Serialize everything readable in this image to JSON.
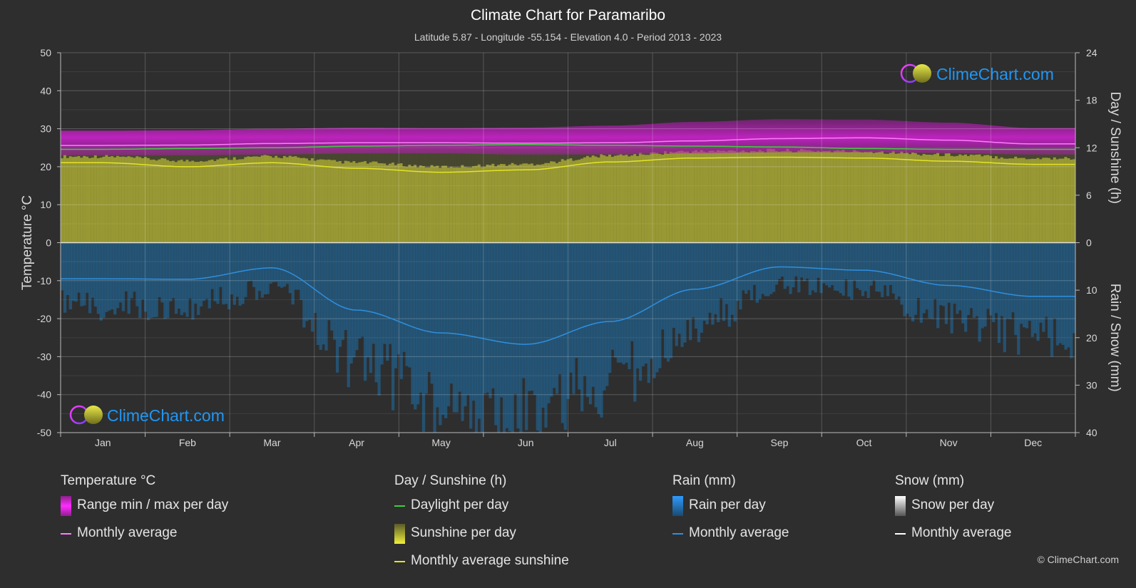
{
  "title": "Climate Chart for Paramaribo",
  "subtitle": "Latitude 5.87 - Longitude -55.154 - Elevation 4.0 - Period 2013 - 2023",
  "watermark_text": "ClimeChart.com",
  "copyright": "© ClimeChart.com",
  "colors": {
    "background": "#2e2e2e",
    "temp_range": "#c21fc2",
    "temp_avg": "#ff7bff",
    "daylight": "#3ecf3e",
    "sunshine": "#a7a735",
    "sunshine_avg": "#e3e329",
    "rain": "#1f6fa8",
    "rain_avg": "#2e8fdf",
    "snow_avg": "#ffffff",
    "brand": "#2196f3"
  },
  "chart_data": {
    "type": "line",
    "title": "Climate Chart for Paramaribo",
    "categories": [
      "Jan",
      "Feb",
      "Mar",
      "Apr",
      "May",
      "Jun",
      "Jul",
      "Aug",
      "Sep",
      "Oct",
      "Nov",
      "Dec"
    ],
    "axes": {
      "left": {
        "label": "Temperature °C",
        "min": -50,
        "max": 50,
        "ticks": [
          "50",
          "40",
          "30",
          "20",
          "10",
          "0",
          "-10",
          "-20",
          "-30",
          "-40",
          "-50"
        ]
      },
      "right_top": {
        "label": "Day / Sunshine (h)",
        "min": 0,
        "max": 24,
        "ticks": [
          "24",
          "18",
          "12",
          "6",
          "0"
        ]
      },
      "right_bottom": {
        "label": "Rain / Snow (mm)",
        "min": 0,
        "max": 40,
        "ticks": [
          "0",
          "10",
          "20",
          "30",
          "40"
        ]
      }
    },
    "grid": true,
    "series": [
      {
        "name": "Range min / max per day",
        "axis": "temperature",
        "kind": "band",
        "min": [
          23.0,
          23.0,
          23.2,
          23.5,
          23.5,
          23.2,
          23.2,
          23.5,
          23.8,
          23.8,
          23.6,
          23.2
        ],
        "max": [
          29.5,
          29.6,
          30.0,
          30.3,
          30.2,
          30.3,
          30.8,
          31.8,
          32.5,
          32.4,
          31.6,
          30.2
        ]
      },
      {
        "name": "Monthly average",
        "group": "Temperature °C",
        "axis": "temperature",
        "values": [
          25.6,
          25.7,
          26.1,
          26.3,
          26.3,
          26.2,
          26.3,
          26.8,
          27.4,
          27.6,
          27.0,
          26.0
        ]
      },
      {
        "name": "Daylight per day",
        "axis": "sunshine",
        "values": [
          11.8,
          11.9,
          12.0,
          12.2,
          12.3,
          12.4,
          12.3,
          12.2,
          12.1,
          11.9,
          11.8,
          11.8
        ]
      },
      {
        "name": "Sunshine per day",
        "axis": "sunshine",
        "kind": "bars",
        "values": [
          10.1,
          9.6,
          10.1,
          9.4,
          8.9,
          9.2,
          10.2,
          10.7,
          10.8,
          10.7,
          10.3,
          9.9
        ]
      },
      {
        "name": "Monthly average sunshine",
        "axis": "sunshine",
        "values": [
          10.1,
          9.6,
          10.1,
          9.4,
          8.9,
          9.2,
          10.2,
          10.7,
          10.8,
          10.7,
          10.3,
          9.9
        ]
      },
      {
        "name": "Rain per day",
        "axis": "rain",
        "kind": "bars",
        "values": [
          7.6,
          7.7,
          5.3,
          14.2,
          19.0,
          21.4,
          16.6,
          9.8,
          5.1,
          5.8,
          9.0,
          11.3
        ]
      },
      {
        "name": "Monthly average",
        "group": "Rain (mm)",
        "axis": "rain",
        "values": [
          7.6,
          7.7,
          5.3,
          14.2,
          19.0,
          21.4,
          16.6,
          9.8,
          5.1,
          5.8,
          9.0,
          11.3
        ]
      },
      {
        "name": "Monthly average",
        "group": "Snow (mm)",
        "axis": "rain",
        "values": [
          0,
          0,
          0,
          0,
          0,
          0,
          0,
          0,
          0,
          0,
          0,
          0
        ]
      }
    ]
  },
  "legend": {
    "temperature": {
      "heading": "Temperature °C",
      "range_label": "Range min / max per day",
      "avg_label": "Monthly average"
    },
    "sunshine": {
      "heading": "Day / Sunshine (h)",
      "daylight_label": "Daylight per day",
      "sunshine_label": "Sunshine per day",
      "avg_label": "Monthly average sunshine"
    },
    "rain": {
      "heading": "Rain (mm)",
      "rain_label": "Rain per day",
      "avg_label": "Monthly average"
    },
    "snow": {
      "heading": "Snow (mm)",
      "snow_label": "Snow per day",
      "avg_label": "Monthly average"
    }
  }
}
